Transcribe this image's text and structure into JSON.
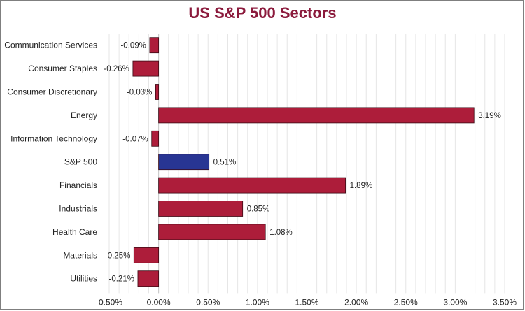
{
  "chart_data": {
    "type": "bar",
    "orientation": "horizontal",
    "title": "US S&P 500 Sectors",
    "xlabel": "",
    "ylabel": "",
    "categories": [
      "Communication Services",
      "Consumer Staples",
      "Consumer Discretionary",
      "Energy",
      "Information Technology",
      "S&P 500",
      "Financials",
      "Industrials",
      "Health Care",
      "Materials",
      "Utilities"
    ],
    "values": [
      -0.09,
      -0.26,
      -0.03,
      3.19,
      -0.07,
      0.51,
      1.89,
      0.85,
      1.08,
      -0.25,
      -0.21
    ],
    "value_labels": [
      "-0.09%",
      "-0.26%",
      "-0.03%",
      "3.19%",
      "-0.07%",
      "0.51%",
      "1.89%",
      "0.85%",
      "1.08%",
      "-0.25%",
      "-0.21%"
    ],
    "xlim": [
      -0.5,
      3.5
    ],
    "x_ticks": [
      -0.5,
      0,
      0.5,
      1.0,
      1.5,
      2.0,
      2.5,
      3.0,
      3.5
    ],
    "x_tick_labels": [
      "-0.50%",
      "0.00%",
      "0.50%",
      "1.00%",
      "1.50%",
      "2.00%",
      "2.50%",
      "3.00%",
      "3.50%"
    ],
    "grid": true,
    "colors": {
      "default_bar": "#ad1d3a",
      "highlight_bar": "#283593",
      "highlight_category": "S&P 500",
      "title": "#8b1a3c",
      "gridline": "#e6e6e6"
    }
  }
}
